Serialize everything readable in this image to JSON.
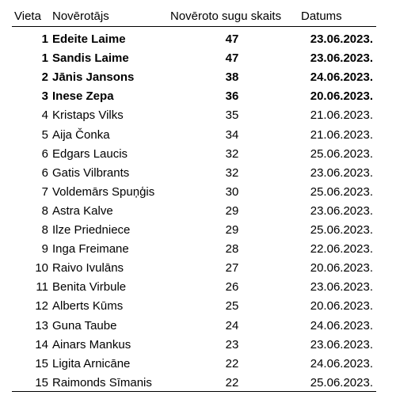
{
  "table": {
    "header": [
      "Vieta",
      "Novērotājs",
      "Novēroto sugu skaits",
      "Datums"
    ],
    "rows": [
      [
        1,
        "Edeite Laime",
        47,
        "23.06.2023."
      ],
      [
        1,
        "Sandis Laime",
        47,
        "23.06.2023."
      ],
      [
        2,
        "Jānis Jansons",
        38,
        "24.06.2023."
      ],
      [
        3,
        "Inese Zepa",
        36,
        "20.06.2023."
      ],
      [
        4,
        "Kristaps Vilks",
        35,
        "21.06.2023."
      ],
      [
        5,
        "Aija Čonka",
        34,
        "21.06.2023."
      ],
      [
        6,
        "Edgars Laucis",
        32,
        "25.06.2023."
      ],
      [
        6,
        "Gatis Vilbrants",
        32,
        "23.06.2023."
      ],
      [
        7,
        "Voldemārs Spuņģis",
        30,
        "25.06.2023."
      ],
      [
        8,
        "Astra Kalve",
        29,
        "23.06.2023."
      ],
      [
        8,
        "Ilze Priedniece",
        29,
        "25.06.2023."
      ],
      [
        9,
        "Inga Freimane",
        28,
        "22.06.2023."
      ],
      [
        10,
        "Raivo Ivulāns",
        27,
        "20.06.2023."
      ],
      [
        11,
        "Benita Virbule",
        26,
        "23.06.2023."
      ],
      [
        12,
        "Alberts Kūms",
        25,
        "20.06.2023."
      ],
      [
        13,
        "Guna Taube",
        24,
        "24.06.2023."
      ],
      [
        14,
        "Ainars Mankus",
        23,
        "23.06.2023."
      ],
      [
        15,
        "Ligita Arnicāne",
        22,
        "24.06.2023."
      ],
      [
        15,
        "Raimonds Sīmanis",
        22,
        "25.06.2023."
      ]
    ]
  }
}
